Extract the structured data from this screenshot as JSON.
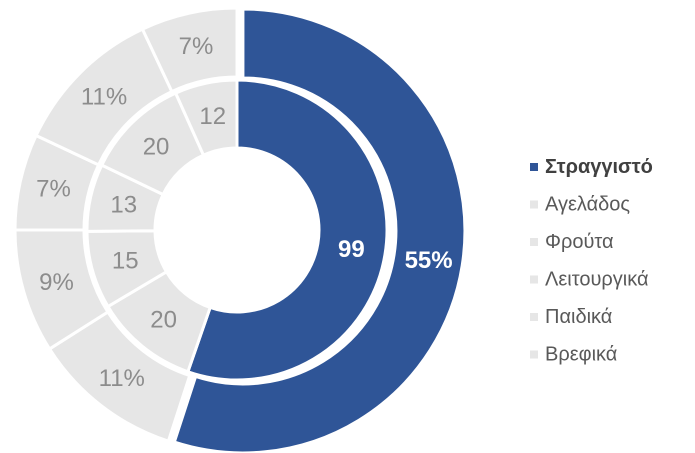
{
  "chart_data": {
    "type": "double-donut",
    "categories": [
      "Στραγγιστό",
      "Αγελάδος",
      "Φρούτα",
      "Λειτουργικά",
      "Παιδικά",
      "Βρεφικά"
    ],
    "colors": [
      "#2f5597",
      "#e6e6e6",
      "#e6e6e6",
      "#e6e6e6",
      "#e6e6e6",
      "#e6e6e6"
    ],
    "inner": {
      "values": [
        99,
        20,
        15,
        13,
        20,
        12
      ]
    },
    "outer": {
      "values": [
        55,
        11,
        9,
        7,
        11,
        7
      ],
      "value_labels": [
        "55%",
        "11%",
        "9%",
        "7%",
        "11%",
        "7%"
      ]
    },
    "legend": "right"
  }
}
